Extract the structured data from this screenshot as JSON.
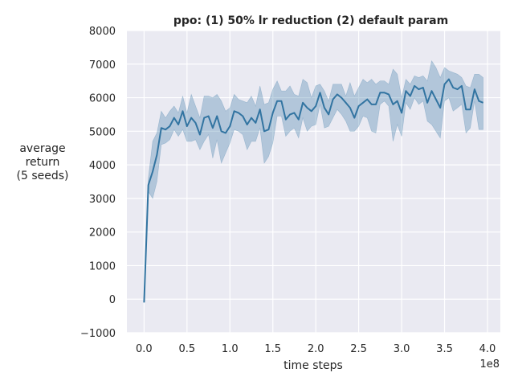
{
  "chart_data": {
    "type": "line",
    "title": "ppo: (1) 50% lr reduction (2) default param",
    "xlabel": "time steps",
    "ylabel": [
      "average",
      "return",
      "(5 seeds)"
    ],
    "x_offset_label": "1e8",
    "xlim": [
      -0.2,
      4.15
    ],
    "ylim": [
      -1000,
      8000
    ],
    "x_ticks": [
      0.0,
      0.5,
      1.0,
      1.5,
      2.0,
      2.5,
      3.0,
      3.5,
      4.0
    ],
    "x_tick_labels": [
      "0.0",
      "0.5",
      "1.0",
      "1.5",
      "2.0",
      "2.5",
      "3.0",
      "3.5",
      "4.0"
    ],
    "y_ticks": [
      -1000,
      0,
      1000,
      2000,
      3000,
      4000,
      5000,
      6000,
      7000,
      8000
    ],
    "y_tick_labels": [
      "−1000",
      "0",
      "1000",
      "2000",
      "3000",
      "4000",
      "5000",
      "6000",
      "7000",
      "8000"
    ],
    "grid": true,
    "line_color": "#3274a1",
    "band_color": "#3274a1",
    "background_color": "#eaeaf2",
    "series": [
      {
        "x": [
          0.0,
          0.05,
          0.1,
          0.15,
          0.2,
          0.25,
          0.3,
          0.35,
          0.4,
          0.45,
          0.5,
          0.55,
          0.6,
          0.65,
          0.7,
          0.75,
          0.8,
          0.85,
          0.9,
          0.95,
          1.0,
          1.05,
          1.1,
          1.15,
          1.2,
          1.25,
          1.3,
          1.35,
          1.4,
          1.45,
          1.5,
          1.55,
          1.6,
          1.65,
          1.7,
          1.75,
          1.8,
          1.85,
          1.9,
          1.95,
          2.0,
          2.05,
          2.1,
          2.15,
          2.2,
          2.25,
          2.3,
          2.35,
          2.4,
          2.45,
          2.5,
          2.55,
          2.6,
          2.65,
          2.7,
          2.75,
          2.8,
          2.85,
          2.9,
          2.95,
          3.0,
          3.05,
          3.1,
          3.15,
          3.2,
          3.25,
          3.3,
          3.35,
          3.4,
          3.45,
          3.5,
          3.55,
          3.6,
          3.65,
          3.7,
          3.75,
          3.8,
          3.85,
          3.9,
          3.95
        ],
        "mean": [
          -100,
          3400,
          3800,
          4300,
          5100,
          5050,
          5150,
          5400,
          5200,
          5600,
          5150,
          5400,
          5250,
          4900,
          5400,
          5450,
          5100,
          5450,
          5000,
          4950,
          5150,
          5600,
          5550,
          5450,
          5200,
          5400,
          5250,
          5650,
          5000,
          5050,
          5550,
          5900,
          5900,
          5350,
          5500,
          5550,
          5350,
          5850,
          5700,
          5600,
          5750,
          6150,
          5700,
          5500,
          5950,
          6100,
          6000,
          5850,
          5700,
          5400,
          5750,
          5850,
          5950,
          5800,
          5800,
          6150,
          6150,
          6100,
          5800,
          5900,
          5550,
          6200,
          6050,
          6350,
          6250,
          6300,
          5850,
          6200,
          5950,
          5700,
          6400,
          6550,
          6300,
          6250,
          6350,
          5650,
          5650,
          6250,
          5900,
          5850
        ],
        "lower": [
          -100,
          3200,
          3000,
          3500,
          4600,
          4650,
          4750,
          5050,
          4850,
          5050,
          4700,
          4700,
          4750,
          4450,
          4700,
          4900,
          4200,
          4750,
          4050,
          4350,
          4650,
          5050,
          5000,
          4900,
          4450,
          4700,
          4700,
          5100,
          4050,
          4250,
          4650,
          5450,
          5450,
          4850,
          5000,
          5100,
          4800,
          5400,
          5000,
          5150,
          5200,
          5800,
          5100,
          5150,
          5400,
          5650,
          5500,
          5300,
          5000,
          5000,
          5150,
          5450,
          5400,
          5000,
          4950,
          5800,
          5900,
          5750,
          4700,
          5200,
          4850,
          5850,
          5650,
          6000,
          5800,
          5900,
          5300,
          5200,
          5000,
          4800,
          5900,
          6000,
          5600,
          5700,
          5800,
          4950,
          5100,
          5900,
          5050,
          5050
        ],
        "upper": [
          -100,
          3600,
          4700,
          4950,
          5600,
          5400,
          5600,
          5750,
          5550,
          6050,
          5550,
          6100,
          5750,
          5400,
          6050,
          6050,
          6000,
          6100,
          5900,
          5600,
          5700,
          6100,
          5950,
          5900,
          5850,
          6050,
          5750,
          6350,
          5800,
          5850,
          6250,
          6500,
          6200,
          6200,
          6350,
          6100,
          6050,
          6550,
          6450,
          6000,
          6350,
          6400,
          6200,
          5900,
          6400,
          6400,
          6400,
          6050,
          6450,
          6050,
          6300,
          6550,
          6450,
          6550,
          6400,
          6500,
          6500,
          6400,
          6850,
          6700,
          6000,
          6550,
          6400,
          6650,
          6600,
          6650,
          6500,
          7100,
          6900,
          6600,
          6900,
          6800,
          6750,
          6700,
          6600,
          6350,
          6300,
          6700,
          6700,
          6600
        ]
      }
    ]
  }
}
